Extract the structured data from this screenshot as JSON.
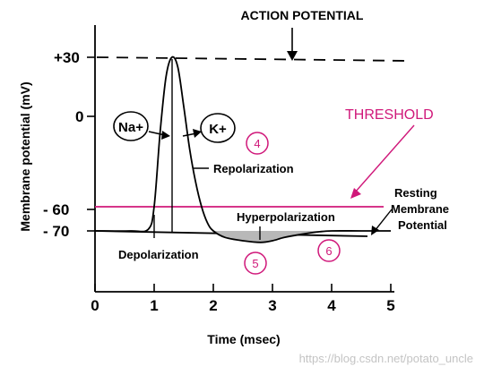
{
  "chart_data": {
    "type": "line",
    "title": "ACTION POTENTIAL",
    "xlabel": "Time (msec)",
    "ylabel": "Membrane potential (mV)",
    "xlim": [
      0,
      5
    ],
    "ylim": [
      -100,
      40
    ],
    "x_ticks": [
      "0",
      "1",
      "2",
      "3",
      "4",
      "5"
    ],
    "y_ticks": [
      "+30",
      "0",
      "- 60",
      "- 70"
    ],
    "series": [
      {
        "x": [
          0,
          0.6,
          0.9,
          1.0,
          1.1,
          1.2,
          1.3,
          1.4,
          1.5,
          1.6,
          1.7,
          1.8,
          1.9,
          2.0,
          2.2,
          2.5,
          2.8,
          3.0,
          3.2,
          3.5,
          3.8,
          4.0,
          4.5,
          5.0
        ],
        "values": [
          -70,
          -70,
          -69,
          -55,
          -10,
          20,
          30,
          25,
          5,
          -20,
          -40,
          -55,
          -65,
          -70,
          -74,
          -76,
          -77,
          -76,
          -74,
          -72,
          -70.5,
          -70,
          -70,
          -70
        ]
      }
    ],
    "reference_lines": [
      {
        "label": "ACTION POTENTIAL",
        "value": 30,
        "style": "dashed"
      },
      {
        "label": "THRESHOLD",
        "value": -60,
        "color": "#d0187a"
      },
      {
        "label": "Resting Membrane Potential",
        "value": -70
      }
    ],
    "annotations": {
      "na": "Na+",
      "k": "K+",
      "repolarization": "Repolarization",
      "hyperpolarization": "Hyperpolarization",
      "depolarization": "Depolarization",
      "resting": [
        "Resting",
        "Membrane",
        "Potential"
      ],
      "phase4": "4",
      "phase5": "5",
      "phase6": "6"
    },
    "colors": {
      "axis": "#000000",
      "threshold": "#d0187a",
      "hyper_fill": "#b8b8b8"
    }
  },
  "watermark": "https://blog.csdn.net/potato_uncle"
}
